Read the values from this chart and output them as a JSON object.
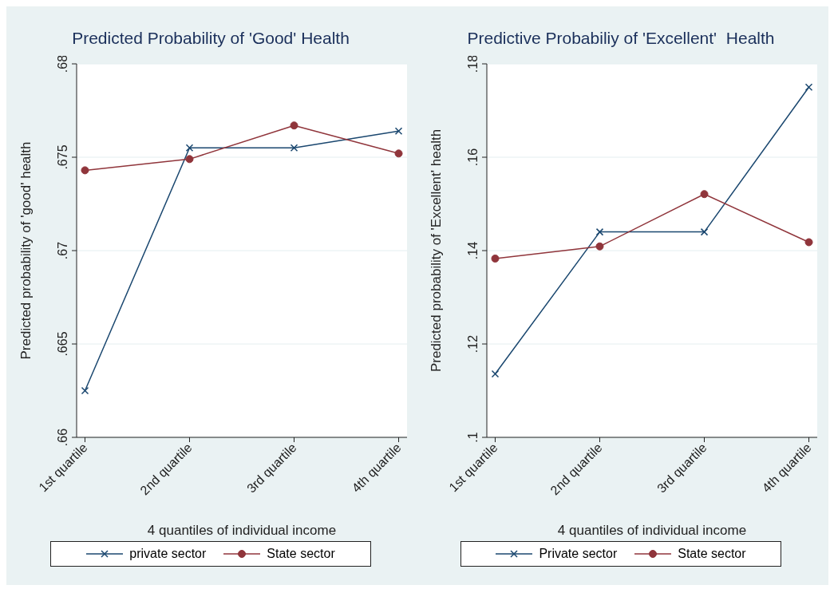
{
  "chart_data": [
    {
      "type": "line",
      "title": "Predicted Probability of 'Good' Health",
      "xlabel": "4 quantiles of individual income",
      "ylabel": "Predicted probability of 'good' health",
      "categories": [
        "1st quartile",
        "2nd quartile",
        "3rd quartile",
        "4th quartile"
      ],
      "series": [
        {
          "name": "private sector",
          "color": "#1a476f",
          "marker": "cross",
          "values": [
            0.6625,
            0.6755,
            0.6755,
            0.6764
          ]
        },
        {
          "name": "State sector",
          "color": "#90353b",
          "marker": "circle",
          "values": [
            0.6743,
            0.6749,
            0.6767,
            0.6752
          ]
        }
      ],
      "ylim": [
        0.66,
        0.68
      ],
      "yticks": [
        {
          "value": 0.66,
          "label": ".66"
        },
        {
          "value": 0.665,
          "label": ".665"
        },
        {
          "value": 0.67,
          "label": ".67"
        },
        {
          "value": 0.675,
          "label": ".675"
        },
        {
          "value": 0.68,
          "label": ".68"
        }
      ],
      "grid": "y",
      "legend": "bottom",
      "line_style": "solid"
    },
    {
      "type": "line",
      "title": "Predictive Probabiliy of 'Excellent'  Health",
      "xlabel": "4 quantiles of individual income",
      "ylabel": "Predicted probability of 'Excellent' health",
      "categories": [
        "1st quartile",
        "2nd quartile",
        "3rd quartile",
        "4th quartile"
      ],
      "series": [
        {
          "name": "Private sector",
          "color": "#1a476f",
          "marker": "cross",
          "values": [
            0.1136,
            0.144,
            0.144,
            0.175
          ]
        },
        {
          "name": "State sector",
          "color": "#90353b",
          "marker": "circle",
          "values": [
            0.1383,
            0.1409,
            0.1521,
            0.1418
          ]
        }
      ],
      "ylim": [
        0.1,
        0.18
      ],
      "yticks": [
        {
          "value": 0.1,
          "label": ".1"
        },
        {
          "value": 0.12,
          "label": ".12"
        },
        {
          "value": 0.14,
          "label": ".14"
        },
        {
          "value": 0.16,
          "label": ".16"
        },
        {
          "value": 0.18,
          "label": ".18"
        }
      ],
      "grid": "y",
      "legend": "bottom",
      "line_style": "solid"
    }
  ]
}
